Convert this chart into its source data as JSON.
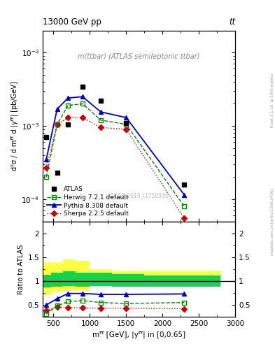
{
  "title_left": "13000 GeV pp",
  "title_right": "tt",
  "plot_label": "m(ttbar) (ATLAS semileptonic ttbar)",
  "watermark": "ATLAS_2019_I1750330",
  "rivet_text": "Rivet 3.1.10, ≥ 100k events",
  "mcplots_text": "mcplots.cern.ch [arXiv:1306.3436]",
  "x_data": [
    400,
    550,
    700,
    900,
    1150,
    1500,
    2300
  ],
  "atlas_y": [
    0.0007,
    0.00023,
    0.00105,
    0.0034,
    0.0022,
    0.0011,
    0.00016
  ],
  "herwig_y": [
    0.0002,
    0.00105,
    0.0019,
    0.002,
    0.0012,
    0.00105,
    8e-05
  ],
  "pythia_y": [
    0.00035,
    0.0017,
    0.0024,
    0.0025,
    0.00155,
    0.0013,
    0.000115
  ],
  "sherpa_y": [
    0.00027,
    0.00105,
    0.0013,
    0.0013,
    0.00095,
    0.0009,
    5.5e-05
  ],
  "herwig_ratio": [
    0.31,
    0.48,
    0.57,
    0.59,
    0.55,
    0.53,
    0.55
  ],
  "pythia_ratio": [
    0.5,
    0.63,
    0.74,
    0.74,
    0.72,
    0.72,
    0.73
  ],
  "sherpa_ratio": [
    0.38,
    0.46,
    0.44,
    0.44,
    0.43,
    0.43,
    0.42
  ],
  "band_x_edges": [
    350,
    470,
    630,
    800,
    1000,
    1300,
    1750,
    2800
  ],
  "green_band_low": [
    0.87,
    0.88,
    0.9,
    0.88,
    0.9,
    0.88,
    0.88
  ],
  "green_band_high": [
    1.13,
    1.18,
    1.2,
    1.18,
    1.18,
    1.15,
    1.12
  ],
  "yellow_band_low": [
    0.7,
    0.78,
    0.8,
    0.8,
    0.97,
    0.97,
    0.97
  ],
  "yellow_band_high": [
    1.4,
    1.38,
    1.45,
    1.42,
    1.25,
    1.22,
    1.22
  ],
  "atlas_color": "#000000",
  "herwig_color": "#008800",
  "pythia_color": "#0000cc",
  "sherpa_color": "#cc0000",
  "green_band_color": "#00cc44",
  "yellow_band_color": "#ffff44",
  "ylim_main": [
    5e-05,
    0.02
  ],
  "ylim_ratio": [
    0.25,
    2.25
  ],
  "xlim": [
    350,
    3000
  ]
}
